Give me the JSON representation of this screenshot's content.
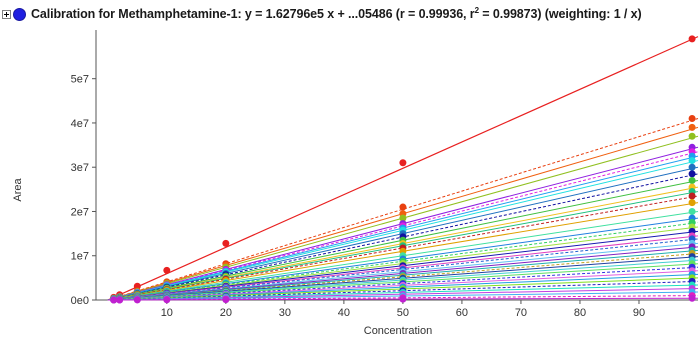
{
  "header": {
    "expand_label": "+",
    "title_main": "Calibration for Methamphetamine-1: y = 1.62796e5 x + ...05486 (r = 0.99936, r",
    "title_sup": "2",
    "title_tail": " = 0.99873)  (weighting: 1 / x)",
    "legend_color": "#1f1fe0"
  },
  "chart_data": {
    "type": "scatter",
    "title": "Calibration for Methamphetamine-1: y = 1.62796e5 x + ...05486 (r = 0.99936, r² = 0.99873)  (weighting: 1 / x)",
    "xlabel": "Concentration",
    "ylabel": "Area",
    "xlim": [
      -2,
      100
    ],
    "ylim": [
      0,
      61000000
    ],
    "xticks": [
      10,
      20,
      30,
      40,
      50,
      60,
      70,
      80,
      90
    ],
    "xtick_labels": [
      "10",
      "20",
      "30",
      "40",
      "50",
      "60",
      "70",
      "80",
      "90"
    ],
    "yticks": [
      0,
      10000000,
      20000000,
      30000000,
      40000000,
      50000000
    ],
    "ytick_labels": [
      "0e0",
      "1e7",
      "2e7",
      "3e7",
      "4e7",
      "5e7"
    ],
    "concentrations": [
      1,
      2,
      5,
      10,
      20,
      50,
      100
    ],
    "series": [
      {
        "color": "#e82020",
        "slope": 595000,
        "y": [
          595000,
          1190000,
          3100000,
          6700000,
          12800000,
          31000000,
          59000000
        ]
      },
      {
        "color": "#e84010",
        "slope": 410000,
        "y": [
          410000,
          820000,
          2050000,
          4100000,
          8200000,
          21000000,
          41000000
        ]
      },
      {
        "color": "#f06010",
        "slope": 390000,
        "y": [
          390000,
          780000,
          1950000,
          3900000,
          7800000,
          19500000,
          39000000
        ]
      },
      {
        "color": "#90c020",
        "slope": 370000,
        "y": [
          370000,
          740000,
          1850000,
          3700000,
          7400000,
          18500000,
          37000000
        ]
      },
      {
        "color": "#9020e0",
        "slope": 345000,
        "y": [
          345000,
          690000,
          1725000,
          3450000,
          6900000,
          17250000,
          34500000
        ]
      },
      {
        "color": "#e020e0",
        "slope": 335000,
        "y": [
          335000,
          670000,
          1675000,
          3350000,
          6700000,
          16750000,
          33500000
        ]
      },
      {
        "color": "#20a0f0",
        "slope": 325000,
        "y": [
          325000,
          650000,
          1625000,
          3250000,
          6500000,
          16250000,
          32500000
        ]
      },
      {
        "color": "#20e0e0",
        "slope": 315000,
        "y": [
          315000,
          630000,
          1575000,
          3150000,
          6300000,
          15750000,
          31500000
        ]
      },
      {
        "color": "#2070c0",
        "slope": 300000,
        "y": [
          300000,
          600000,
          1500000,
          3000000,
          6000000,
          15000000,
          30000000
        ]
      },
      {
        "color": "#1010a0",
        "slope": 285000,
        "y": [
          285000,
          570000,
          1425000,
          2850000,
          5700000,
          14250000,
          28500000
        ]
      },
      {
        "color": "#40c040",
        "slope": 270000,
        "y": [
          270000,
          540000,
          1350000,
          2700000,
          5400000,
          13500000,
          27000000
        ]
      },
      {
        "color": "#f0c020",
        "slope": 255000,
        "y": [
          255000,
          510000,
          1275000,
          2550000,
          5100000,
          12750000,
          25500000
        ]
      },
      {
        "color": "#20c080",
        "slope": 245000,
        "y": [
          245000,
          490000,
          1225000,
          2450000,
          4900000,
          12250000,
          24500000
        ]
      },
      {
        "color": "#c02020",
        "slope": 235000,
        "y": [
          235000,
          470000,
          1175000,
          2350000,
          4700000,
          11750000,
          23500000
        ]
      },
      {
        "color": "#e0a000",
        "slope": 220000,
        "y": [
          220000,
          440000,
          1100000,
          2200000,
          4400000,
          11000000,
          22000000
        ]
      },
      {
        "color": "#40e0a0",
        "slope": 200000,
        "y": [
          200000,
          400000,
          1000000,
          2000000,
          4000000,
          10000000,
          20000000
        ]
      },
      {
        "color": "#2080e0",
        "slope": 185000,
        "y": [
          185000,
          370000,
          925000,
          1850000,
          3700000,
          9250000,
          18500000
        ]
      },
      {
        "color": "#30d060",
        "slope": 175000,
        "y": [
          175000,
          350000,
          875000,
          1750000,
          3500000,
          8750000,
          17500000
        ]
      },
      {
        "color": "#a0e040",
        "slope": 165000,
        "y": [
          165000,
          330000,
          825000,
          1650000,
          3300000,
          8250000,
          16500000
        ]
      },
      {
        "color": "#1818b0",
        "slope": 155000,
        "y": [
          155000,
          310000,
          775000,
          1550000,
          3100000,
          7750000,
          15500000
        ]
      },
      {
        "color": "#e040c0",
        "slope": 145000,
        "y": [
          145000,
          290000,
          725000,
          1450000,
          2900000,
          7250000,
          14500000
        ]
      },
      {
        "color": "#2060d0",
        "slope": 138000,
        "y": [
          138000,
          276000,
          690000,
          1380000,
          2760000,
          6900000,
          13800000
        ]
      },
      {
        "color": "#60c0f0",
        "slope": 128000,
        "y": [
          128000,
          256000,
          640000,
          1280000,
          2560000,
          6400000,
          12800000
        ]
      },
      {
        "color": "#8020c0",
        "slope": 120000,
        "y": [
          120000,
          240000,
          600000,
          1200000,
          2400000,
          6000000,
          12000000
        ]
      },
      {
        "color": "#20b0b0",
        "slope": 112000,
        "y": [
          112000,
          224000,
          560000,
          1120000,
          2240000,
          5600000,
          11200000
        ]
      },
      {
        "color": "#c0a020",
        "slope": 105000,
        "y": [
          105000,
          210000,
          525000,
          1050000,
          2100000,
          5250000,
          10500000
        ]
      },
      {
        "color": "#2040a0",
        "slope": 98000,
        "y": [
          98000,
          196000,
          490000,
          980000,
          1960000,
          4900000,
          9800000
        ]
      },
      {
        "color": "#40d0d0",
        "slope": 90000,
        "y": [
          90000,
          180000,
          450000,
          900000,
          1800000,
          4500000,
          9000000
        ]
      },
      {
        "color": "#60e060",
        "slope": 82000,
        "y": [
          82000,
          164000,
          410000,
          820000,
          1640000,
          4100000,
          8200000
        ]
      },
      {
        "color": "#3030e0",
        "slope": 74000,
        "y": [
          74000,
          148000,
          370000,
          740000,
          1480000,
          3700000,
          7400000
        ]
      },
      {
        "color": "#e060e0",
        "slope": 66000,
        "y": [
          66000,
          132000,
          330000,
          660000,
          1320000,
          3300000,
          6600000
        ]
      },
      {
        "color": "#20a0e0",
        "slope": 58000,
        "y": [
          58000,
          116000,
          290000,
          580000,
          1160000,
          2900000,
          5800000
        ]
      },
      {
        "color": "#80e020",
        "slope": 50000,
        "y": [
          50000,
          100000,
          250000,
          500000,
          1000000,
          2500000,
          5000000
        ]
      },
      {
        "color": "#2020c0",
        "slope": 42000,
        "y": [
          42000,
          84000,
          210000,
          420000,
          840000,
          2100000,
          4200000
        ]
      },
      {
        "color": "#20e0c0",
        "slope": 34000,
        "y": [
          34000,
          68000,
          170000,
          340000,
          680000,
          1700000,
          3400000
        ]
      },
      {
        "color": "#c040e0",
        "slope": 26000,
        "y": [
          26000,
          52000,
          130000,
          260000,
          520000,
          1300000,
          2600000
        ]
      },
      {
        "color": "#40b0f0",
        "slope": 18000,
        "y": [
          18000,
          36000,
          90000,
          180000,
          360000,
          900000,
          1800000
        ]
      },
      {
        "color": "#e020c0",
        "slope": 10000,
        "y": [
          10000,
          20000,
          50000,
          100000,
          200000,
          500000,
          1000000
        ]
      },
      {
        "color": "#c020d0",
        "slope": 4000,
        "y": [
          4000,
          8000,
          20000,
          40000,
          80000,
          200000,
          400000
        ]
      }
    ]
  }
}
